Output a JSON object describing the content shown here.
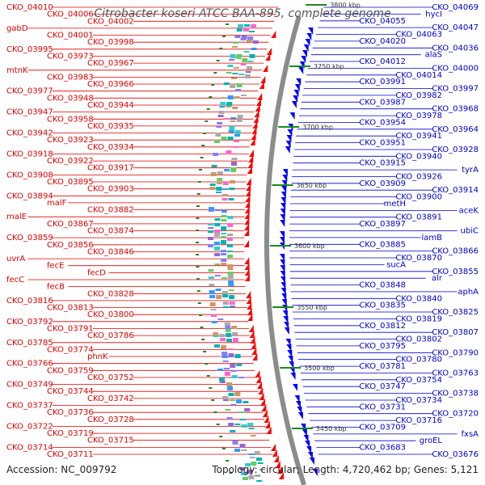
{
  "title": "Citrobacter koseri ATCC BAA-895, complete genome",
  "accession": "Accession: NC_009792",
  "info": "Topology: circular; Length: 4,720,462 bp; Genes: 5,121",
  "colors": {
    "left_labels": "#dd0000",
    "right_labels": "#0000cc",
    "backbone": "#8c8c8c",
    "ticks": "#1a8a1a",
    "kbp_text": "#333333"
  },
  "kbp_markers": [
    "3800 kbp",
    "3750 kbp",
    "3700 kbp",
    "3650 kbp",
    "3600 kbp",
    "3550 kbp",
    "3500 kbp",
    "3450 kbp"
  ],
  "left_labels": [
    "CKO_04010",
    "CKO_04006",
    "CKO_04002",
    "gabD",
    "CKO_04001",
    "CKO_03998",
    "CKO_03995",
    "CKO_03973",
    "CKO_03967",
    "mtnK",
    "CKO_03983",
    "CKO_03966",
    "CKO_03977",
    "CKO_03948",
    "CKO_03944",
    "CKO_03947",
    "CKO_03958",
    "CKO_03935",
    "CKO_03942",
    "CKO_03923",
    "CKO_03934",
    "CKO_03918",
    "CKO_03922",
    "CKO_03917",
    "CKO_03908",
    "CKO_03895",
    "CKO_03903",
    "CKO_03894",
    "malF",
    "CKO_03882",
    "malE",
    "CKO_03867",
    "CKO_03874",
    "CKO_03859",
    "CKO_03856",
    "CKO_03846",
    "uvrA",
    "fecE",
    "fecD",
    "fecC",
    "fecB",
    "CKO_03828",
    "CKO_03816",
    "CKO_03813",
    "CKO_03800",
    "CKO_03792",
    "CKO_03791",
    "CKO_03786",
    "CKO_03785",
    "CKO_03774",
    "phnK",
    "CKO_03766",
    "CKO_03759",
    "CKO_03752",
    "CKO_03749",
    "CKO_03744",
    "CKO_03742",
    "CKO_03737",
    "CKO_03736",
    "CKO_03728",
    "CKO_03722",
    "CKO_03719",
    "CKO_03715",
    "CKO_03714",
    "CKO_03711"
  ],
  "right_labels": [
    "CKO_04069",
    "hycI",
    "CKO_04055",
    "CKO_04047",
    "CKO_04063",
    "CKO_04020",
    "CKO_04036",
    "alaS",
    "CKO_04012",
    "CKO_04000",
    "CKO_04014",
    "CKO_03991",
    "CKO_03997",
    "CKO_03982",
    "CKO_03987",
    "CKO_03968",
    "CKO_03978",
    "CKO_03954",
    "CKO_03964",
    "CKO_03941",
    "CKO_03951",
    "CKO_03928",
    "CKO_03940",
    "CKO_03915",
    "tyrA",
    "CKO_03926",
    "CKO_03909",
    "CKO_03914",
    "CKO_03900",
    "metH",
    "aceK",
    "CKO_03891",
    "CKO_03897",
    "ubiC",
    "lamB",
    "CKO_03885",
    "CKO_03866",
    "CKO_03870",
    "sucA",
    "CKO_03855",
    "alr",
    "CKO_03848",
    "aphA",
    "CKO_03840",
    "CKO_03835",
    "CKO_03825",
    "CKO_03819",
    "CKO_03812",
    "CKO_03807",
    "CKO_03802",
    "CKO_03795",
    "CKO_03790",
    "CKO_03780",
    "CKO_03781",
    "CKO_03763",
    "CKO_03754",
    "CKO_03747",
    "CKO_03738",
    "CKO_03734",
    "CKO_03731",
    "CKO_03720",
    "CKO_03716",
    "CKO_03709",
    "fxsA",
    "groEL",
    "CKO_03683",
    "CKO_03676"
  ]
}
